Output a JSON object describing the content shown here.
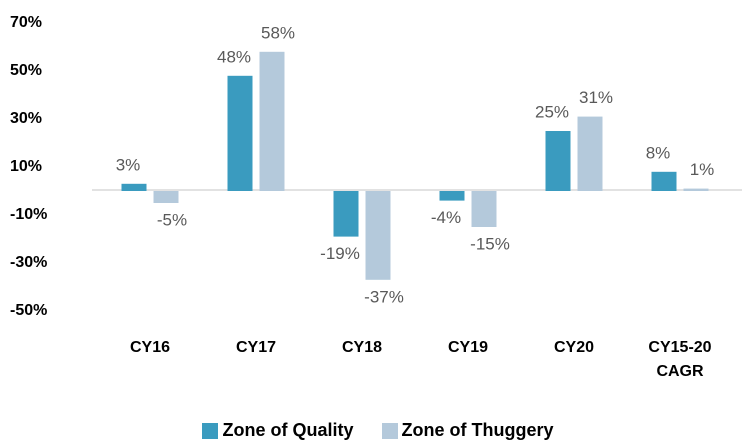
{
  "chart_data": {
    "type": "bar",
    "categories": [
      "CY16",
      "CY17",
      "CY18",
      "CY19",
      "CY20",
      "CY15-20 CAGR"
    ],
    "series": [
      {
        "name": "Zone of Quality",
        "color": "#3a9bbf",
        "values": [
          3,
          48,
          -19,
          -4,
          25,
          8
        ],
        "value_labels": [
          "3%",
          "48%",
          "-19%",
          "-4%",
          "25%",
          "8%"
        ]
      },
      {
        "name": "Zone of Thuggery",
        "color": "#b4c9db",
        "values": [
          -5,
          58,
          -37,
          -15,
          31,
          1
        ],
        "value_labels": [
          "-5%",
          "58%",
          "-37%",
          "-15%",
          "31%",
          "1%"
        ]
      }
    ],
    "ylim": [
      -50,
      70
    ],
    "yticks": [
      {
        "value": -50,
        "label": "-50%"
      },
      {
        "value": -30,
        "label": "-30%"
      },
      {
        "value": -10,
        "label": "-10%"
      },
      {
        "value": 10,
        "label": "10%"
      },
      {
        "value": 30,
        "label": "30%"
      },
      {
        "value": 50,
        "label": "50%"
      },
      {
        "value": 70,
        "label": "70%"
      }
    ],
    "grid": false,
    "legend": "bottom"
  }
}
